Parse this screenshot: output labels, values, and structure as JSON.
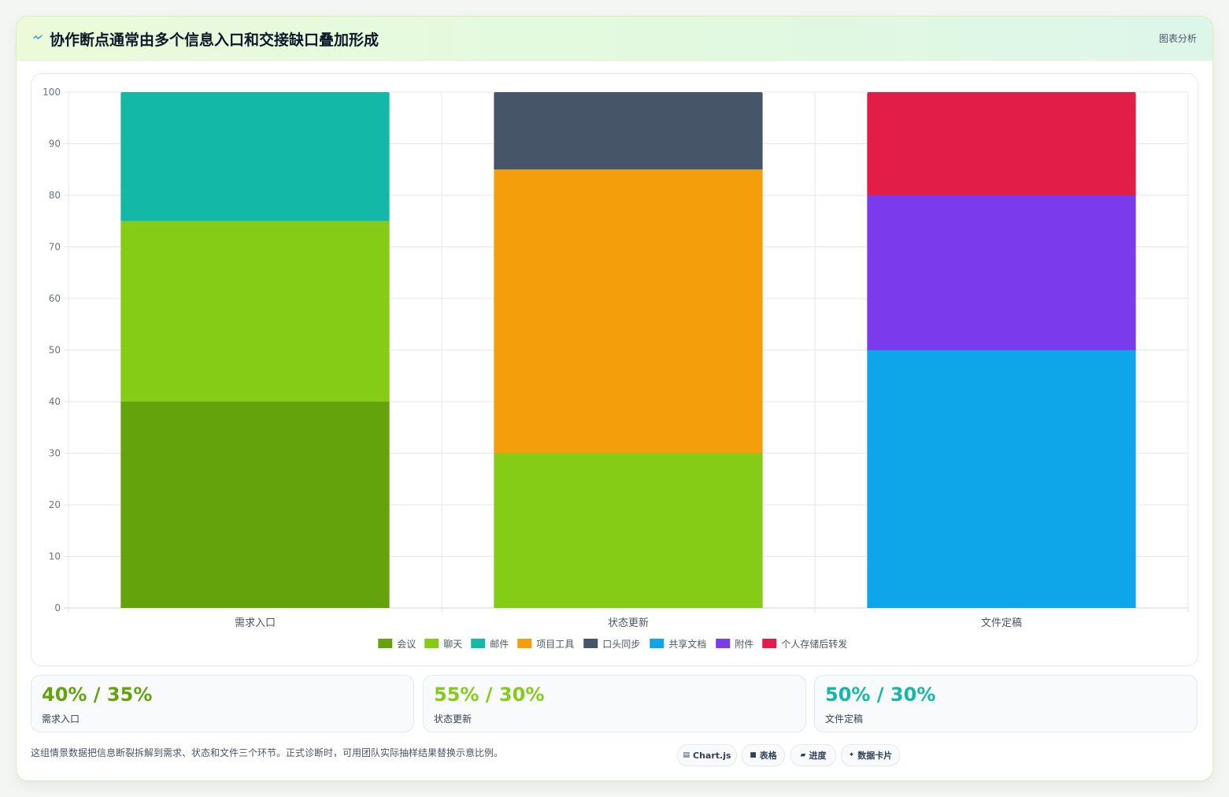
{
  "header": {
    "title": "协作断点通常由多个信息入口和交接缺口叠加形成",
    "right_label": "图表分析",
    "icon": "lightning-icon"
  },
  "chart_data": {
    "type": "bar",
    "stacked": true,
    "categories": [
      "需求入口",
      "状态更新",
      "文件定稿"
    ],
    "ylim": [
      0,
      100
    ],
    "yticks": [
      0,
      10,
      20,
      30,
      40,
      50,
      60,
      70,
      80,
      90,
      100
    ],
    "grid": true,
    "legend_position": "bottom",
    "series": [
      {
        "name": "会议",
        "color": "#65a30d",
        "values": [
          40,
          0,
          0
        ]
      },
      {
        "name": "聊天",
        "color": "#84cc16",
        "values": [
          35,
          30,
          0
        ]
      },
      {
        "name": "邮件",
        "color": "#14b8a6",
        "values": [
          25,
          0,
          0
        ]
      },
      {
        "name": "项目工具",
        "color": "#f59e0b",
        "values": [
          0,
          55,
          0
        ]
      },
      {
        "name": "口头同步",
        "color": "#475569",
        "values": [
          0,
          15,
          0
        ]
      },
      {
        "name": "共享文档",
        "color": "#0ea5e9",
        "values": [
          0,
          0,
          50
        ]
      },
      {
        "name": "附件",
        "color": "#7c3aed",
        "values": [
          0,
          0,
          30
        ]
      },
      {
        "name": "个人存储后转发",
        "color": "#e11d48",
        "values": [
          0,
          0,
          20
        ]
      }
    ]
  },
  "stats": [
    {
      "value": "40% / 35%",
      "label": "需求入口",
      "color": "#65a30d"
    },
    {
      "value": "55% / 30%",
      "label": "状态更新",
      "color": "#84cc16"
    },
    {
      "value": "50% / 30%",
      "label": "文件定稿",
      "color": "#14b8a6"
    }
  ],
  "footer": {
    "note": "这组情景数据把信息断裂拆解到需求、状态和文件三个环节。正式诊断时，可用团队实际抽样结果替换示意比例。",
    "chips": [
      {
        "label": "Chart.js",
        "icon": "chart-icon"
      },
      {
        "label": "表格",
        "icon": "table-icon"
      },
      {
        "label": "进度",
        "icon": "progress-icon"
      },
      {
        "label": "数据卡片",
        "icon": "sparkle-icon"
      }
    ]
  }
}
